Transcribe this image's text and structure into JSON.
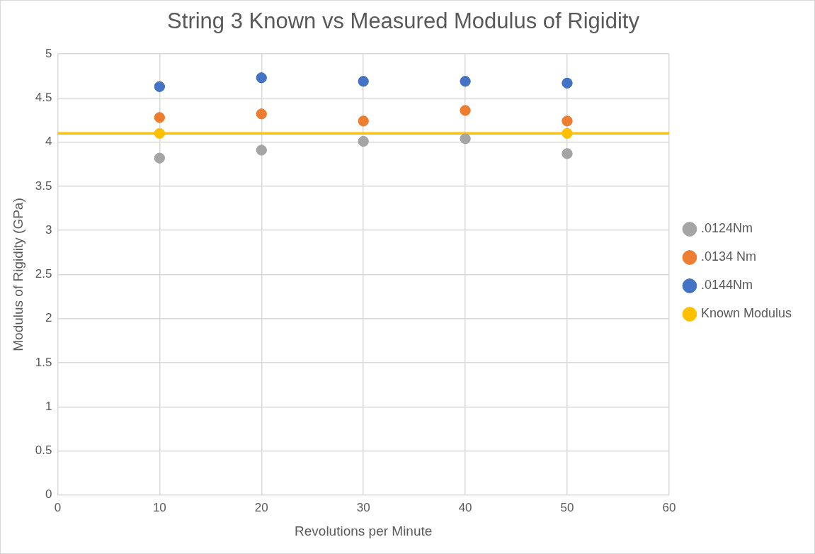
{
  "chart_data": {
    "type": "scatter",
    "title": "String 3 Known vs Measured Modulus of Rigidity",
    "xlabel": "Revolutions per Minute",
    "ylabel": "Modulus of Rigidity (GPa)",
    "x": [
      10,
      20,
      30,
      40,
      50
    ],
    "series": [
      {
        "name": ".0124Nm",
        "color": "#a5a5a5",
        "values": [
          3.82,
          3.91,
          4.01,
          4.04,
          3.87
        ]
      },
      {
        "name": ".0134 Nm",
        "color": "#ed7d31",
        "values": [
          4.28,
          4.32,
          4.24,
          4.36,
          4.24
        ]
      },
      {
        "name": ".0144Nm",
        "color": "#4472c4",
        "values": [
          4.63,
          4.73,
          4.69,
          4.69,
          4.67
        ]
      },
      {
        "name": "Known Modulus",
        "color": "#ffc000",
        "x": [
          10,
          50
        ],
        "values": [
          4.1,
          4.1
        ]
      }
    ],
    "ref_lines": [
      {
        "axis": "y",
        "value": 4.1,
        "color": "#ffc000"
      }
    ],
    "xlim": [
      0,
      60
    ],
    "xticks": [
      0,
      10,
      20,
      30,
      40,
      50,
      60
    ],
    "ylim": [
      0,
      5
    ],
    "yticks": [
      0,
      0.5,
      1,
      1.5,
      2,
      2.5,
      3,
      3.5,
      4,
      4.5,
      5
    ],
    "grid": true,
    "legend": "right",
    "marker": "circle"
  }
}
